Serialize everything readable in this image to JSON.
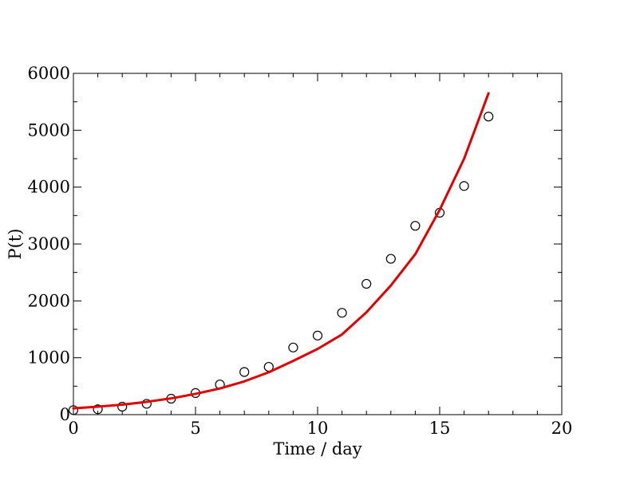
{
  "chart_data": {
    "type": "scatter",
    "title": "",
    "xlabel": "Time / day",
    "ylabel": "P(t)",
    "xlim": [
      0,
      20
    ],
    "ylim": [
      0,
      6000
    ],
    "x_ticks": [
      0,
      5,
      10,
      15,
      20
    ],
    "y_ticks": [
      0,
      1000,
      2000,
      3000,
      4000,
      5000,
      6000
    ],
    "x_minor_step": 1,
    "y_minor_step": 500,
    "grid": false,
    "series": [
      {
        "kind": "scatter",
        "marker": "open-circle",
        "color": "#000000",
        "x": [
          0,
          1,
          2,
          3,
          4,
          5,
          6,
          7,
          8,
          9,
          10,
          11,
          12,
          13,
          14,
          15,
          16,
          17
        ],
        "y": [
          80,
          95,
          140,
          190,
          280,
          380,
          530,
          750,
          840,
          1180,
          1390,
          1790,
          2300,
          2740,
          3320,
          3550,
          4020,
          5240
        ]
      },
      {
        "kind": "line",
        "color": "#e00000",
        "x": [
          0,
          1,
          2,
          3,
          4,
          5,
          6,
          7,
          8,
          9,
          10,
          11,
          12,
          13,
          14,
          15,
          16,
          17
        ],
        "y": [
          110,
          140,
          175,
          225,
          285,
          365,
          460,
          585,
          745,
          945,
          1155,
          1410,
          1800,
          2270,
          2820,
          3600,
          4500,
          5650
        ]
      }
    ]
  }
}
